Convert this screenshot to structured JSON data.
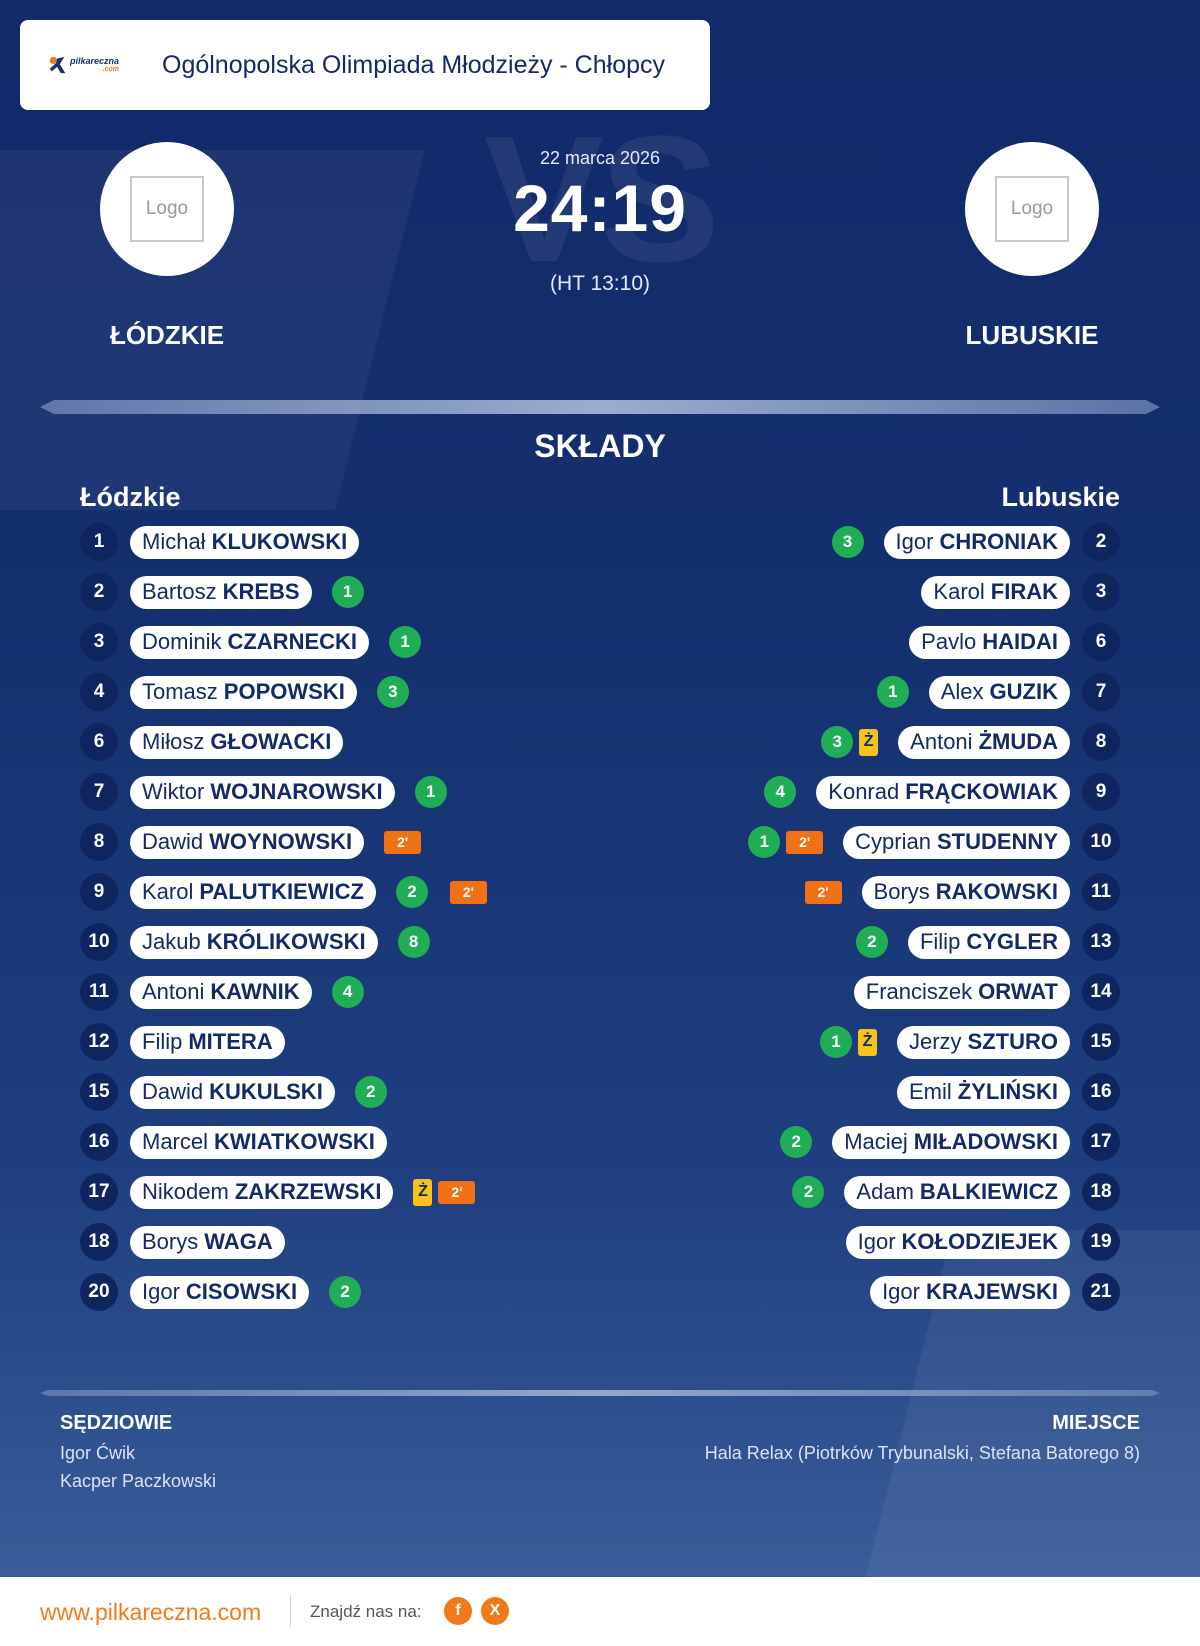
{
  "header": {
    "competition": "Ogólnopolska Olimpiada Młodzieży - Chłopcy",
    "brand_logo": {
      "name": "pilkareczna",
      "suffix": ".com"
    }
  },
  "match": {
    "date": "22 marca 2026",
    "score": "24:19",
    "halftime": "(HT 13:10)",
    "watermark": "VS"
  },
  "home": {
    "logo_placeholder": "Logo",
    "name": "ŁÓDZKIE",
    "lineup_title": "Łódzkie",
    "players": [
      {
        "number": "1",
        "first": "Michał",
        "last": "KLUKOWSKI",
        "goals": null,
        "yellow": null,
        "suspension": null
      },
      {
        "number": "2",
        "first": "Bartosz",
        "last": "KREBS",
        "goals": "1",
        "yellow": null,
        "suspension": null
      },
      {
        "number": "3",
        "first": "Dominik",
        "last": "CZARNECKI",
        "goals": "1",
        "yellow": null,
        "suspension": null
      },
      {
        "number": "4",
        "first": "Tomasz",
        "last": "POPOWSKI",
        "goals": "3",
        "yellow": null,
        "suspension": null
      },
      {
        "number": "6",
        "first": "Miłosz",
        "last": "GŁOWACKI",
        "goals": null,
        "yellow": null,
        "suspension": null
      },
      {
        "number": "7",
        "first": "Wiktor",
        "last": "WOJNAROWSKI",
        "goals": "1",
        "yellow": null,
        "suspension": null
      },
      {
        "number": "8",
        "first": "Dawid",
        "last": "WOYNOWSKI",
        "goals": null,
        "yellow": null,
        "suspension": "2'"
      },
      {
        "number": "9",
        "first": "Karol",
        "last": "PALUTKIEWICZ",
        "goals": "2",
        "yellow": null,
        "suspension": "2'"
      },
      {
        "number": "10",
        "first": "Jakub",
        "last": "KRÓLIKOWSKI",
        "goals": "8",
        "yellow": null,
        "suspension": null
      },
      {
        "number": "11",
        "first": "Antoni",
        "last": "KAWNIK",
        "goals": "4",
        "yellow": null,
        "suspension": null
      },
      {
        "number": "12",
        "first": "Filip",
        "last": "MITERA",
        "goals": null,
        "yellow": null,
        "suspension": null
      },
      {
        "number": "15",
        "first": "Dawid",
        "last": "KUKULSKI",
        "goals": "2",
        "yellow": null,
        "suspension": null
      },
      {
        "number": "16",
        "first": "Marcel",
        "last": "KWIATKOWSKI",
        "goals": null,
        "yellow": null,
        "suspension": null
      },
      {
        "number": "17",
        "first": "Nikodem",
        "last": "ZAKRZEWSKI",
        "goals": null,
        "yellow": "Ż",
        "suspension": "2'"
      },
      {
        "number": "18",
        "first": "Borys",
        "last": "WAGA",
        "goals": null,
        "yellow": null,
        "suspension": null
      },
      {
        "number": "20",
        "first": "Igor",
        "last": "CISOWSKI",
        "goals": "2",
        "yellow": null,
        "suspension": null
      }
    ]
  },
  "away": {
    "logo_placeholder": "Logo",
    "name": "LUBUSKIE",
    "lineup_title": "Lubuskie",
    "players": [
      {
        "number": "2",
        "first": "Igor",
        "last": "CHRONIAK",
        "goals": "3",
        "yellow": null,
        "suspension": null
      },
      {
        "number": "3",
        "first": "Karol",
        "last": "FIRAK",
        "goals": null,
        "yellow": null,
        "suspension": null
      },
      {
        "number": "6",
        "first": "Pavlo",
        "last": "HAIDAI",
        "goals": null,
        "yellow": null,
        "suspension": null
      },
      {
        "number": "7",
        "first": "Alex",
        "last": "GUZIK",
        "goals": "1",
        "yellow": null,
        "suspension": null
      },
      {
        "number": "8",
        "first": "Antoni",
        "last": "ŻMUDA",
        "goals": "3",
        "yellow": "Ż",
        "suspension": null
      },
      {
        "number": "9",
        "first": "Konrad",
        "last": "FRĄCKOWIAK",
        "goals": "4",
        "yellow": null,
        "suspension": null
      },
      {
        "number": "10",
        "first": "Cyprian",
        "last": "STUDENNY",
        "goals": "1",
        "yellow": null,
        "suspension": "2'"
      },
      {
        "number": "11",
        "first": "Borys",
        "last": "RAKOWSKI",
        "goals": null,
        "yellow": null,
        "suspension": "2'"
      },
      {
        "number": "13",
        "first": "Filip",
        "last": "CYGLER",
        "goals": "2",
        "yellow": null,
        "suspension": null
      },
      {
        "number": "14",
        "first": "Franciszek",
        "last": "ORWAT",
        "goals": null,
        "yellow": null,
        "suspension": null
      },
      {
        "number": "15",
        "first": "Jerzy",
        "last": "SZTURO",
        "goals": "1",
        "yellow": "Ż",
        "suspension": null
      },
      {
        "number": "16",
        "first": "Emil",
        "last": "ŻYLIŃSKI",
        "goals": null,
        "yellow": null,
        "suspension": null
      },
      {
        "number": "17",
        "first": "Maciej",
        "last": "MIŁADOWSKI",
        "goals": "2",
        "yellow": null,
        "suspension": null
      },
      {
        "number": "18",
        "first": "Adam",
        "last": "BALKIEWICZ",
        "goals": "2",
        "yellow": null,
        "suspension": null
      },
      {
        "number": "19",
        "first": "Igor",
        "last": "KOŁODZIEJEK",
        "goals": null,
        "yellow": null,
        "suspension": null
      },
      {
        "number": "21",
        "first": "Igor",
        "last": "KRAJEWSKI",
        "goals": null,
        "yellow": null,
        "suspension": null
      }
    ]
  },
  "section": {
    "lineups_title": "SKŁADY"
  },
  "officials": {
    "label": "SĘDZIOWIE",
    "names": [
      "Igor Ćwik",
      "Kacper Paczkowski"
    ]
  },
  "venue": {
    "label": "MIEJSCE",
    "text": "Hala Relax (Piotrków Trybunalski, Stefana Batorego 8)"
  },
  "footer": {
    "site": "www.pilkareczna.com",
    "find_us": "Znajdź nas na:",
    "social": [
      {
        "icon": "facebook-icon",
        "glyph": "f"
      },
      {
        "icon": "x-icon",
        "glyph": "X"
      }
    ]
  },
  "colors": {
    "background": "#14306f",
    "goal": "#1fae55",
    "yellow_card": "#f7c31a",
    "suspension": "#f27016",
    "accent": "#f07a1a"
  }
}
